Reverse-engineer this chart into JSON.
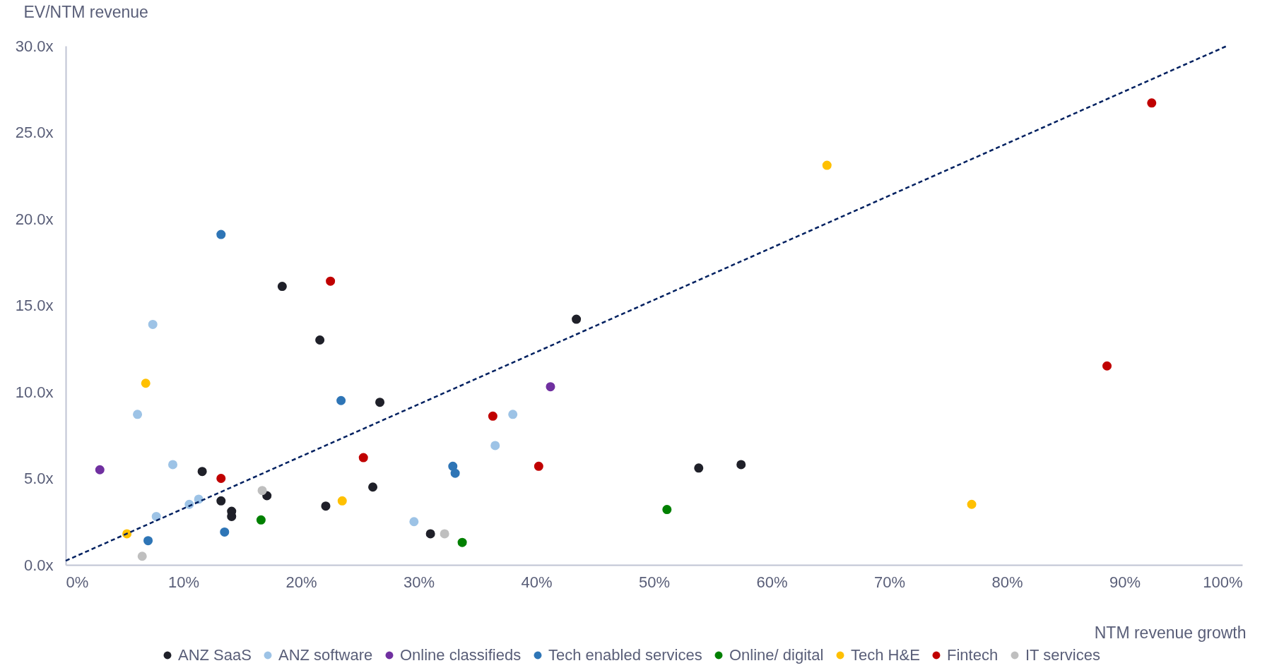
{
  "chart_data": {
    "type": "scatter",
    "xlabel": "NTM revenue growth",
    "ylabel": "EV/NTM revenue",
    "xlim": [
      0,
      100
    ],
    "ylim": [
      0,
      30
    ],
    "xticks": [
      {
        "value": 0,
        "label": "0%"
      },
      {
        "value": 10,
        "label": "10%"
      },
      {
        "value": 20,
        "label": "20%"
      },
      {
        "value": 30,
        "label": "30%"
      },
      {
        "value": 40,
        "label": "40%"
      },
      {
        "value": 50,
        "label": "50%"
      },
      {
        "value": 60,
        "label": "60%"
      },
      {
        "value": 70,
        "label": "70%"
      },
      {
        "value": 80,
        "label": "80%"
      },
      {
        "value": 90,
        "label": "90%"
      },
      {
        "value": 100,
        "label": "100%"
      }
    ],
    "yticks": [
      {
        "value": 0,
        "label": "0.0x"
      },
      {
        "value": 5,
        "label": "5.0x"
      },
      {
        "value": 10,
        "label": "10.0x"
      },
      {
        "value": 15,
        "label": "15.0x"
      },
      {
        "value": 20,
        "label": "20.0x"
      },
      {
        "value": 25,
        "label": "25.0x"
      },
      {
        "value": 30,
        "label": "30.0x"
      }
    ],
    "grid": false,
    "legend": "bottom",
    "marker": "circle",
    "series": [
      {
        "name": "ANZ SaaS",
        "color": "#1f2029",
        "x": [
          18.4,
          21.6,
          43.4,
          26.7,
          11.6,
          13.2,
          14.1,
          14.1,
          17.1,
          22.1,
          26.1,
          31.0,
          53.8,
          57.4
        ],
        "values": [
          16.1,
          13.0,
          14.2,
          9.4,
          5.4,
          3.7,
          3.1,
          2.8,
          4.0,
          3.4,
          4.5,
          1.8,
          5.6,
          5.8
        ]
      },
      {
        "name": "ANZ software",
        "color": "#9dc3e6",
        "x": [
          7.4,
          6.1,
          9.1,
          11.3,
          10.5,
          7.7,
          29.6,
          36.5,
          38.0
        ],
        "values": [
          13.9,
          8.7,
          5.8,
          3.8,
          3.5,
          2.8,
          2.5,
          6.9,
          8.7
        ]
      },
      {
        "name": "Online classifieds",
        "color": "#7030a0",
        "x": [
          2.9,
          41.2
        ],
        "values": [
          5.5,
          10.3
        ]
      },
      {
        "name": "Tech enabled services",
        "color": "#2e75b6",
        "x": [
          13.2,
          23.4,
          32.9,
          33.1,
          13.5,
          7.0
        ],
        "values": [
          19.1,
          9.5,
          5.7,
          5.3,
          1.9,
          1.4
        ]
      },
      {
        "name": "Online/ digital",
        "color": "#008000",
        "x": [
          16.6,
          33.7,
          51.1
        ],
        "values": [
          2.6,
          1.3,
          3.2
        ]
      },
      {
        "name": "Tech H&E",
        "color": "#ffc000",
        "x": [
          6.8,
          5.2,
          23.5,
          64.7,
          77.0
        ],
        "values": [
          10.5,
          1.8,
          3.7,
          23.1,
          3.5
        ]
      },
      {
        "name": "Fintech",
        "color": "#c00000",
        "x": [
          22.5,
          13.2,
          25.3,
          36.3,
          40.2,
          88.5,
          92.3
        ],
        "values": [
          16.4,
          5.0,
          6.2,
          8.6,
          5.7,
          11.5,
          26.7
        ]
      },
      {
        "name": "IT services",
        "color": "#bfbfbf",
        "x": [
          16.7,
          6.5,
          32.2
        ],
        "values": [
          4.3,
          0.5,
          1.8
        ]
      },
      {
        "type": "line",
        "color": "#002060",
        "line_style": "dashed",
        "marker": "none",
        "x": [
          0,
          98.7
        ],
        "values": [
          0.24,
          30
        ]
      }
    ]
  }
}
